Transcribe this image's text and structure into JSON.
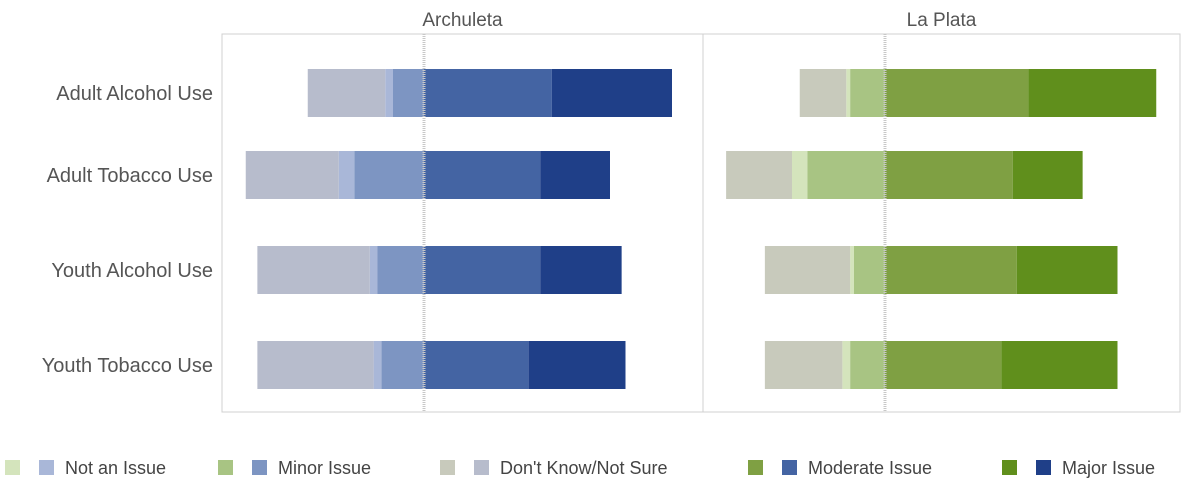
{
  "chart_data": {
    "type": "bar",
    "subtype": "diverging-stacked-bar",
    "categories": [
      "Adult Alcohol Use",
      "Adult Tobacco Use",
      "Youth Alcohol Use",
      "Youth Tobacco Use"
    ],
    "panels": [
      {
        "title": "Archuleta",
        "colors": {
          "Not an Issue": "#a9b7d8",
          "Minor Issue": "#7d95c2",
          "Don't Know/Not Sure": "#b7bccc",
          "Moderate Issue": "#4464a3",
          "Major Issue": "#1f3f88"
        },
        "series": [
          {
            "name": "Not an Issue",
            "values": [
              1,
              2,
              1,
              1
            ]
          },
          {
            "name": "Minor Issue",
            "values": [
              4,
              9,
              6,
              5.5
            ]
          },
          {
            "name": "Don't Know/Not Sure",
            "values": [
              10,
              12,
              14.5,
              15
            ]
          },
          {
            "name": "Moderate Issue",
            "values": [
              16.5,
              15,
              15,
              13.5
            ]
          },
          {
            "name": "Major Issue",
            "values": [
              15.5,
              9,
              10.5,
              12.5
            ]
          }
        ]
      },
      {
        "title": "La Plata",
        "colors": {
          "Not an Issue": "#d4e4bc",
          "Minor Issue": "#a8c483",
          "Don't Know/Not Sure": "#c8cabc",
          "Moderate Issue": "#7fa043",
          "Major Issue": "#608f1c"
        },
        "series": [
          {
            "name": "Not an Issue",
            "values": [
              0.5,
              2,
              0.5,
              1
            ]
          },
          {
            "name": "Minor Issue",
            "values": [
              4.5,
              10,
              4,
              4.5
            ]
          },
          {
            "name": "Don't Know/Not Sure",
            "values": [
              6,
              8.5,
              11,
              10
            ]
          },
          {
            "name": "Moderate Issue",
            "values": [
              18.5,
              16.5,
              17,
              15
            ]
          },
          {
            "name": "Major Issue",
            "values": [
              16.5,
              9,
              13,
              15
            ]
          }
        ]
      }
    ],
    "legend": {
      "placement": "bottom",
      "entries": [
        "Not an Issue",
        "Minor Issue",
        "Don't Know/Not Sure",
        "Moderate Issue",
        "Major Issue"
      ]
    },
    "grid": false
  }
}
